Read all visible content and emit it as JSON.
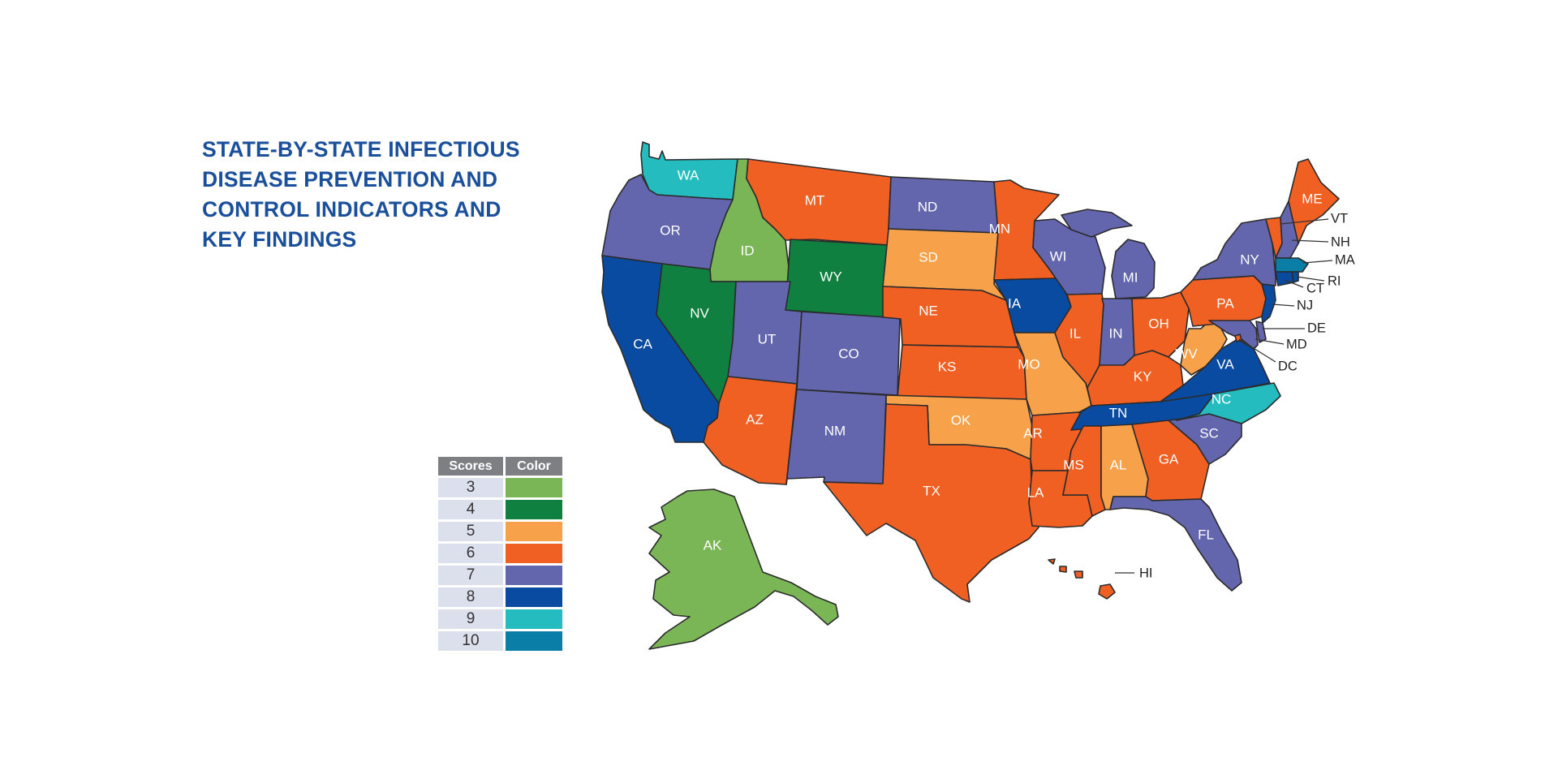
{
  "title": "STATE-BY-STATE INFECTIOUS\nDISEASE PREVENTION AND\nCONTROL INDICATORS AND\nKEY FINDINGS",
  "legend": {
    "headers": {
      "scores": "Scores",
      "color": "Color"
    },
    "rows": [
      {
        "score": "3",
        "color": "#7bb656"
      },
      {
        "score": "4",
        "color": "#0f8040"
      },
      {
        "score": "5",
        "color": "#f7a24b"
      },
      {
        "score": "6",
        "color": "#f06023"
      },
      {
        "score": "7",
        "color": "#6365ad"
      },
      {
        "score": "8",
        "color": "#0a4ba2"
      },
      {
        "score": "9",
        "color": "#24bcbe"
      },
      {
        "score": "10",
        "color": "#0a7ea6"
      }
    ]
  },
  "states": {
    "WA": {
      "label": "WA",
      "score": 9
    },
    "OR": {
      "label": "OR",
      "score": 7
    },
    "CA": {
      "label": "CA",
      "score": 8
    },
    "ID": {
      "label": "ID",
      "score": 3
    },
    "NV": {
      "label": "NV",
      "score": 4
    },
    "MT": {
      "label": "MT",
      "score": 6
    },
    "WY": {
      "label": "WY",
      "score": 4
    },
    "UT": {
      "label": "UT",
      "score": 7
    },
    "CO": {
      "label": "CO",
      "score": 7
    },
    "AZ": {
      "label": "AZ",
      "score": 6
    },
    "NM": {
      "label": "NM",
      "score": 7
    },
    "ND": {
      "label": "ND",
      "score": 7
    },
    "SD": {
      "label": "SD",
      "score": 5
    },
    "NE": {
      "label": "NE",
      "score": 6
    },
    "KS": {
      "label": "KS",
      "score": 6
    },
    "OK": {
      "label": "OK",
      "score": 5
    },
    "TX": {
      "label": "TX",
      "score": 6
    },
    "MN": {
      "label": "MN",
      "score": 6
    },
    "IA": {
      "label": "IA",
      "score": 8
    },
    "MO": {
      "label": "MO",
      "score": 5
    },
    "AR": {
      "label": "AR",
      "score": 6
    },
    "LA": {
      "label": "LA",
      "score": 6
    },
    "WI": {
      "label": "WI",
      "score": 7
    },
    "IL": {
      "label": "IL",
      "score": 6
    },
    "MI": {
      "label": "MI",
      "score": 7
    },
    "IN": {
      "label": "IN",
      "score": 7
    },
    "OH": {
      "label": "OH",
      "score": 6
    },
    "KY": {
      "label": "KY",
      "score": 6
    },
    "TN": {
      "label": "TN",
      "score": 8
    },
    "MS": {
      "label": "MS",
      "score": 6
    },
    "AL": {
      "label": "AL",
      "score": 5
    },
    "GA": {
      "label": "GA",
      "score": 6
    },
    "FL": {
      "label": "FL",
      "score": 7
    },
    "SC": {
      "label": "SC",
      "score": 7
    },
    "NC": {
      "label": "NC",
      "score": 9
    },
    "VA": {
      "label": "VA",
      "score": 8
    },
    "WV": {
      "label": "WV",
      "score": 5
    },
    "PA": {
      "label": "PA",
      "score": 6
    },
    "NY": {
      "label": "NY",
      "score": 7
    },
    "ME": {
      "label": "ME",
      "score": 6
    },
    "VT": {
      "label": "VT",
      "score": 6
    },
    "NH": {
      "label": "NH",
      "score": 7
    },
    "MA": {
      "label": "MA",
      "score": 10
    },
    "RI": {
      "label": "RI",
      "score": 8
    },
    "CT": {
      "label": "CT",
      "score": 8
    },
    "NJ": {
      "label": "NJ",
      "score": 8
    },
    "DE": {
      "label": "DE",
      "score": 7
    },
    "MD": {
      "label": "MD",
      "score": 7
    },
    "DC": {
      "label": "DC",
      "score": 6
    },
    "AK": {
      "label": "AK",
      "score": 3
    },
    "HI": {
      "label": "HI",
      "score": 6
    }
  }
}
